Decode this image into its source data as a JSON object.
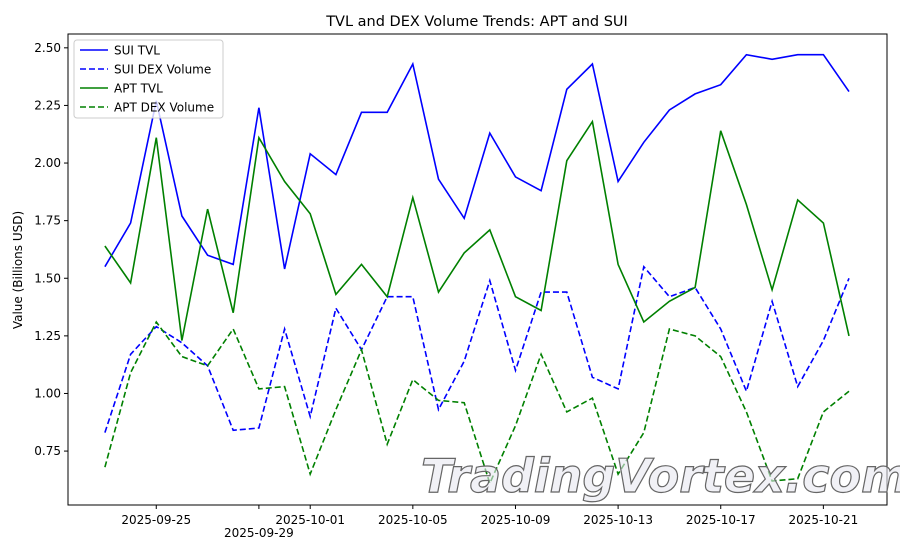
{
  "chart_data": {
    "type": "line",
    "title": "TVL and DEX Volume Trends: APT and SUI",
    "xlabel": "",
    "ylabel": "Value (Billions USD)",
    "ylim": [
      0.516,
      2.56
    ],
    "grid": false,
    "legend_position": "top-left",
    "x": [
      "2025-09-23",
      "2025-09-24",
      "2025-09-25",
      "2025-09-26",
      "2025-09-27",
      "2025-09-28",
      "2025-09-29",
      "2025-09-30",
      "2025-10-01",
      "2025-10-02",
      "2025-10-03",
      "2025-10-04",
      "2025-10-05",
      "2025-10-06",
      "2025-10-07",
      "2025-10-08",
      "2025-10-09",
      "2025-10-10",
      "2025-10-11",
      "2025-10-12",
      "2025-10-13",
      "2025-10-14",
      "2025-10-15",
      "2025-10-16",
      "2025-10-17",
      "2025-10-18",
      "2025-10-19",
      "2025-10-20",
      "2025-10-21",
      "2025-10-22"
    ],
    "x_ticks": [
      {
        "label": "2025-09-25",
        "index": 2
      },
      {
        "label": "2025-09-29",
        "index": 6
      },
      {
        "label": "2025-10-01",
        "index": 8
      },
      {
        "label": "2025-10-05",
        "index": 12
      },
      {
        "label": "2025-10-09",
        "index": 16
      },
      {
        "label": "2025-10-13",
        "index": 20
      },
      {
        "label": "2025-10-17",
        "index": 24
      },
      {
        "label": "2025-10-21",
        "index": 28
      }
    ],
    "y_ticks": [
      "0.75",
      "1.00",
      "1.25",
      "1.50",
      "1.75",
      "2.00",
      "2.25",
      "2.50"
    ],
    "series": [
      {
        "name": "SUI TVL",
        "color": "#0000ff",
        "dashed": false,
        "values": [
          1.55,
          1.74,
          2.27,
          1.77,
          1.6,
          1.56,
          2.24,
          1.54,
          2.04,
          1.95,
          2.22,
          2.22,
          2.43,
          1.93,
          1.76,
          2.13,
          1.94,
          1.88,
          2.32,
          2.43,
          1.92,
          2.09,
          2.23,
          2.3,
          2.34,
          2.47,
          2.45,
          2.47,
          2.47,
          2.31
        ]
      },
      {
        "name": "SUI DEX Volume",
        "color": "#0000ff",
        "dashed": true,
        "values": [
          0.83,
          1.17,
          1.29,
          1.22,
          1.12,
          0.84,
          0.85,
          1.28,
          0.9,
          1.37,
          1.19,
          1.42,
          1.42,
          0.93,
          1.14,
          1.49,
          1.1,
          1.44,
          1.44,
          1.07,
          1.02,
          1.55,
          1.42,
          1.46,
          1.28,
          1.01,
          1.4,
          1.03,
          1.23,
          1.5
        ]
      },
      {
        "name": "APT TVL",
        "color": "#008000",
        "dashed": false,
        "values": [
          1.64,
          1.48,
          2.11,
          1.23,
          1.8,
          1.35,
          2.11,
          1.92,
          1.78,
          1.43,
          1.56,
          1.42,
          1.85,
          1.44,
          1.61,
          1.71,
          1.42,
          1.36,
          2.01,
          2.18,
          1.56,
          1.31,
          1.4,
          1.46,
          2.14,
          1.82,
          1.45,
          1.84,
          1.74,
          1.25
        ]
      },
      {
        "name": "APT DEX Volume",
        "color": "#008000",
        "dashed": true,
        "values": [
          0.68,
          1.09,
          1.31,
          1.16,
          1.12,
          1.28,
          1.02,
          1.03,
          0.65,
          0.93,
          1.19,
          0.78,
          1.06,
          0.97,
          0.96,
          0.61,
          0.86,
          1.17,
          0.92,
          0.98,
          0.65,
          0.83,
          1.28,
          1.25,
          1.16,
          0.92,
          0.62,
          0.63,
          0.92,
          1.01
        ]
      }
    ]
  },
  "watermark": "TradingVortex.com"
}
